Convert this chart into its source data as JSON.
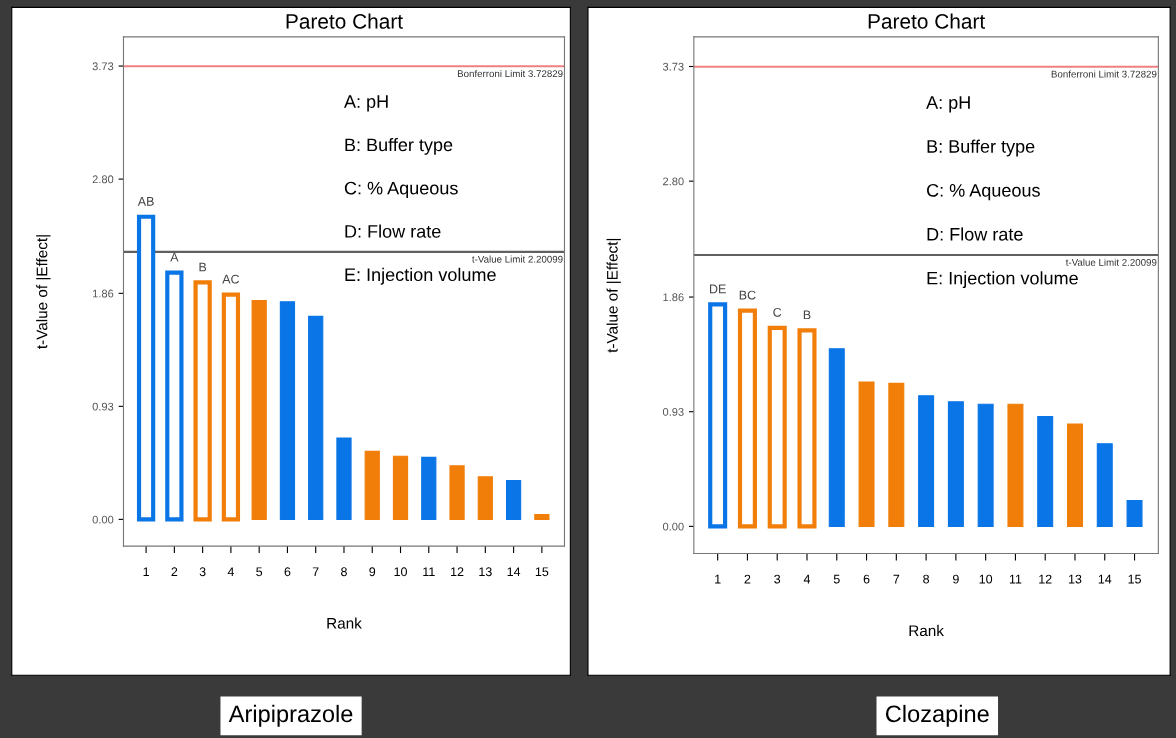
{
  "chart_data": [
    {
      "type": "bar",
      "title": "Pareto Chart",
      "xlabel": "Rank",
      "ylabel": "t-Value of |Effect|",
      "categories": [
        "1",
        "2",
        "3",
        "4",
        "5",
        "6",
        "7",
        "8",
        "9",
        "10",
        "11",
        "12",
        "13",
        "14",
        "15"
      ],
      "values": [
        2.49,
        2.03,
        1.95,
        1.85,
        1.8,
        1.79,
        1.67,
        0.67,
        0.56,
        0.52,
        0.51,
        0.44,
        0.35,
        0.32,
        0.04
      ],
      "value_labels": [
        "AB",
        "A",
        "B",
        "AC",
        null,
        null,
        null,
        null,
        null,
        null,
        null,
        null,
        null,
        null,
        null
      ],
      "colors": [
        "#0a75e6",
        "#0a75e6",
        "#f07e08",
        "#f07e08",
        "#f07e08",
        "#0a75e6",
        "#0a75e6",
        "#0a75e6",
        "#f07e08",
        "#f07e08",
        "#0a75e6",
        "#f07e08",
        "#f07e08",
        "#0a75e6",
        "#f07e08"
      ],
      "ylim": [
        -0.22,
        3.97
      ],
      "yticks": [
        {
          "value": 0,
          "label": "0.00"
        },
        {
          "value": 0.93,
          "label": "0.93"
        },
        {
          "value": 1.86,
          "label": "1.86"
        },
        {
          "value": 2.8,
          "label": "2.80"
        },
        {
          "value": 3.73,
          "label": "3.73"
        }
      ],
      "ref_lines": [
        {
          "axis": "y",
          "value": 3.72829,
          "label": "Bonferroni Limit 3.72829",
          "color": "#f08080"
        },
        {
          "axis": "y",
          "value": 2.20099,
          "label": "t-Value Limit 2.20099",
          "color": "#606060"
        }
      ],
      "annotations": [
        "A: pH",
        "B: Buffer type",
        "C: % Aqueous",
        "D: Flow rate",
        "E: Injection volume",
        "Aripiprazole"
      ]
    },
    {
      "type": "bar",
      "title": "Pareto Chart",
      "xlabel": "Rank",
      "ylabel": "t-Value of |Effect|",
      "categories": [
        "1",
        "2",
        "3",
        "4",
        "5",
        "6",
        "7",
        "8",
        "9",
        "10",
        "11",
        "12",
        "13",
        "14",
        "15"
      ],
      "values": [
        1.8,
        1.75,
        1.61,
        1.59,
        1.44,
        1.17,
        1.16,
        1.06,
        1.01,
        0.99,
        0.99,
        0.89,
        0.83,
        0.67,
        0.21
      ],
      "value_labels": [
        "DE",
        "BC",
        "C",
        "B",
        null,
        null,
        null,
        null,
        null,
        null,
        null,
        null,
        null,
        null,
        null
      ],
      "colors": [
        "#0a75e6",
        "#f07e08",
        "#f07e08",
        "#f07e08",
        "#0a75e6",
        "#f07e08",
        "#f07e08",
        "#0a75e6",
        "#0a75e6",
        "#0a75e6",
        "#f07e08",
        "#0a75e6",
        "#f07e08",
        "#0a75e6",
        "#0a75e6"
      ],
      "ylim": [
        -0.22,
        3.97
      ],
      "yticks": [
        {
          "value": 0,
          "label": "0.00"
        },
        {
          "value": 0.93,
          "label": "0.93"
        },
        {
          "value": 1.86,
          "label": "1.86"
        },
        {
          "value": 2.8,
          "label": "2.80"
        },
        {
          "value": 3.73,
          "label": "3.73"
        }
      ],
      "ref_lines": [
        {
          "axis": "y",
          "value": 3.72829,
          "label": "Bonferroni Limit 3.72829",
          "color": "#f08080"
        },
        {
          "axis": "y",
          "value": 2.20099,
          "label": "t-Value Limit 2.20099",
          "color": "#606060"
        }
      ],
      "annotations": [
        "A: pH",
        "B: Buffer type",
        "C: % Aqueous",
        "D: Flow rate",
        "E: Injection volume",
        "Clozapine"
      ]
    }
  ]
}
